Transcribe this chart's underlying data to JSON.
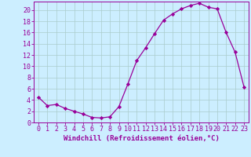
{
  "hours": [
    0,
    1,
    2,
    3,
    4,
    5,
    6,
    7,
    8,
    9,
    10,
    11,
    12,
    13,
    14,
    15,
    16,
    17,
    18,
    19,
    20,
    21,
    22,
    23
  ],
  "values": [
    4.5,
    3.0,
    3.2,
    2.5,
    2.0,
    1.5,
    0.9,
    0.8,
    1.0,
    2.8,
    6.8,
    11.0,
    13.3,
    15.8,
    18.2,
    19.3,
    20.2,
    20.8,
    21.2,
    20.5,
    20.2,
    16.0,
    12.5,
    6.3
  ],
  "line_color": "#990099",
  "marker": "D",
  "marker_size": 2.2,
  "bg_color": "#cceeff",
  "grid_color": "#aacccc",
  "xlabel": "Windchill (Refroidissement éolien,°C)",
  "xlabel_color": "#990099",
  "tick_color": "#990099",
  "ylim": [
    0,
    21.5
  ],
  "xlim": [
    -0.5,
    23.5
  ],
  "yticks": [
    0,
    2,
    4,
    6,
    8,
    10,
    12,
    14,
    16,
    18,
    20
  ],
  "xticks": [
    0,
    1,
    2,
    3,
    4,
    5,
    6,
    7,
    8,
    9,
    10,
    11,
    12,
    13,
    14,
    15,
    16,
    17,
    18,
    19,
    20,
    21,
    22,
    23
  ],
  "tick_fontsize": 6.0,
  "xlabel_fontsize": 6.5
}
